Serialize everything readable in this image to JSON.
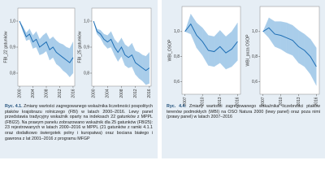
{
  "figures": [
    {
      "label": "Ryc. 4.1.",
      "text": "Zmiany wartości zagregowanego wskaźnika liczebności pospolitych ptaków krajobrazu rolniczego (FBI) w latach 2000–2016. Lewy panel przedstawia tradycyjny wskaźnik oparty na indeksach 22 gatunków z MPPL (FBI22). Na prawym panelu zobrazowano wskaźnik dla 25 gatunków (FBI25): 23 rejestrowanych w latach 2000–2016 w MPPL (21 gatunków z ramki 4.1.1 oraz dodatkowo świergotek polny i kuropatwa) oraz bociana białego i gawrona z lat 2001–2016 z programu MFGP",
      "charts": [
        {
          "type": "line",
          "y_label": "FBI_22 gatunków",
          "color": "#1f6fb5",
          "band_color": "#a9cdea",
          "x": [
            2000,
            2001,
            2002,
            2003,
            2004,
            2005,
            2006,
            2007,
            2008,
            2009,
            2010,
            2011,
            2012,
            2013,
            2014,
            2015,
            2016
          ],
          "values": [
            1.0,
            0.97,
            0.94,
            0.95,
            0.92,
            0.93,
            0.9,
            0.91,
            0.92,
            0.89,
            0.9,
            0.88,
            0.87,
            0.86,
            0.85,
            0.84,
            0.86
          ],
          "lower": [
            1.0,
            0.96,
            0.925,
            0.93,
            0.895,
            0.9,
            0.87,
            0.875,
            0.885,
            0.85,
            0.86,
            0.835,
            0.825,
            0.81,
            0.8,
            0.785,
            0.8
          ],
          "upper": [
            1.0,
            0.98,
            0.955,
            0.97,
            0.945,
            0.96,
            0.93,
            0.945,
            0.955,
            0.93,
            0.94,
            0.925,
            0.915,
            0.91,
            0.9,
            0.895,
            0.92
          ],
          "xlim": [
            1999.5,
            2016.5
          ],
          "xticks": [
            2000,
            2004,
            2008,
            2012,
            2016
          ],
          "ylim": [
            0.75,
            1.05
          ],
          "yticks": [
            {
              "value": 0.8,
              "label": "0,8"
            },
            {
              "value": 0.9,
              "label": "0,9"
            },
            {
              "value": 1.0,
              "label": "1,0"
            }
          ]
        },
        {
          "type": "line",
          "y_label": "FBI_25 gatunków",
          "color": "#1f6fb5",
          "band_color": "#a9cdea",
          "x": [
            2000,
            2001,
            2002,
            2003,
            2004,
            2005,
            2006,
            2007,
            2008,
            2009,
            2010,
            2011,
            2012,
            2013,
            2014,
            2015,
            2016
          ],
          "values": [
            1.0,
            0.96,
            0.95,
            0.93,
            0.92,
            0.93,
            0.9,
            0.88,
            0.9,
            0.87,
            0.86,
            0.87,
            0.84,
            0.83,
            0.82,
            0.81,
            0.82
          ],
          "lower": [
            1.0,
            0.95,
            0.935,
            0.91,
            0.895,
            0.9,
            0.87,
            0.845,
            0.865,
            0.83,
            0.82,
            0.825,
            0.795,
            0.78,
            0.77,
            0.755,
            0.76
          ],
          "upper": [
            1.0,
            0.97,
            0.965,
            0.95,
            0.945,
            0.96,
            0.93,
            0.915,
            0.935,
            0.91,
            0.9,
            0.915,
            0.885,
            0.88,
            0.87,
            0.865,
            0.88
          ],
          "xlim": [
            1999.5,
            2016.5
          ],
          "xticks": [
            2000,
            2004,
            2008,
            2012,
            2016
          ],
          "ylim": [
            0.75,
            1.05
          ],
          "yticks": [
            {
              "value": 0.8,
              "label": "0,8"
            },
            {
              "value": 0.9,
              "label": "0,9"
            },
            {
              "value": 1.0,
              "label": "1,0"
            }
          ]
        }
      ]
    },
    {
      "label": "Ryc. 4.4.",
      "text": "Zmiany wartości zagregowanego wskaźnika liczebności ptaków terenów podmokłych (WBI) na OSO Natura 2000 (lewy panel) oraz poza nimi (prawy panel) w latach 2007–2016",
      "charts": [
        {
          "type": "line",
          "y_label": "WBI_OSOP",
          "color": "#1f6fb5",
          "band_color": "#a9cdea",
          "x": [
            2007,
            2008,
            2009,
            2010,
            2011,
            2012,
            2013,
            2014,
            2015,
            2016
          ],
          "values": [
            1.0,
            1.06,
            0.97,
            0.92,
            0.85,
            0.84,
            0.88,
            0.83,
            0.86,
            0.92
          ],
          "lower": [
            1.0,
            0.98,
            0.87,
            0.81,
            0.73,
            0.72,
            0.75,
            0.7,
            0.72,
            0.77
          ],
          "upper": [
            1.0,
            1.14,
            1.07,
            1.03,
            0.97,
            0.96,
            1.01,
            0.96,
            1.0,
            1.07
          ],
          "xlim": [
            2006.5,
            2016.5
          ],
          "xticks": [
            2007,
            2010,
            2013,
            2016
          ],
          "ylim": [
            0.5,
            1.2
          ],
          "yticks": [
            {
              "value": 0.6,
              "label": "0,6"
            },
            {
              "value": 0.8,
              "label": "0,8"
            },
            {
              "value": 1.0,
              "label": "1,0"
            }
          ]
        },
        {
          "type": "line",
          "y_label": "WBI_poza OSOP",
          "color": "#1f6fb5",
          "band_color": "#a9cdea",
          "x": [
            2007,
            2008,
            2009,
            2010,
            2011,
            2012,
            2013,
            2014,
            2015,
            2016
          ],
          "values": [
            1.0,
            1.03,
            0.98,
            0.97,
            0.95,
            0.93,
            0.88,
            0.85,
            0.8,
            0.72
          ],
          "lower": [
            1.0,
            0.95,
            0.88,
            0.86,
            0.83,
            0.81,
            0.75,
            0.72,
            0.66,
            0.57
          ],
          "upper": [
            1.0,
            1.11,
            1.08,
            1.08,
            1.07,
            1.05,
            1.01,
            0.98,
            0.94,
            0.87
          ],
          "xlim": [
            2006.5,
            2016.5
          ],
          "xticks": [
            2007,
            2010,
            2013,
            2016
          ],
          "ylim": [
            0.5,
            1.2
          ],
          "yticks": [
            {
              "value": 0.6,
              "label": "0,6"
            },
            {
              "value": 0.8,
              "label": "0,8"
            },
            {
              "value": 1.0,
              "label": "1,0"
            }
          ]
        }
      ]
    }
  ]
}
